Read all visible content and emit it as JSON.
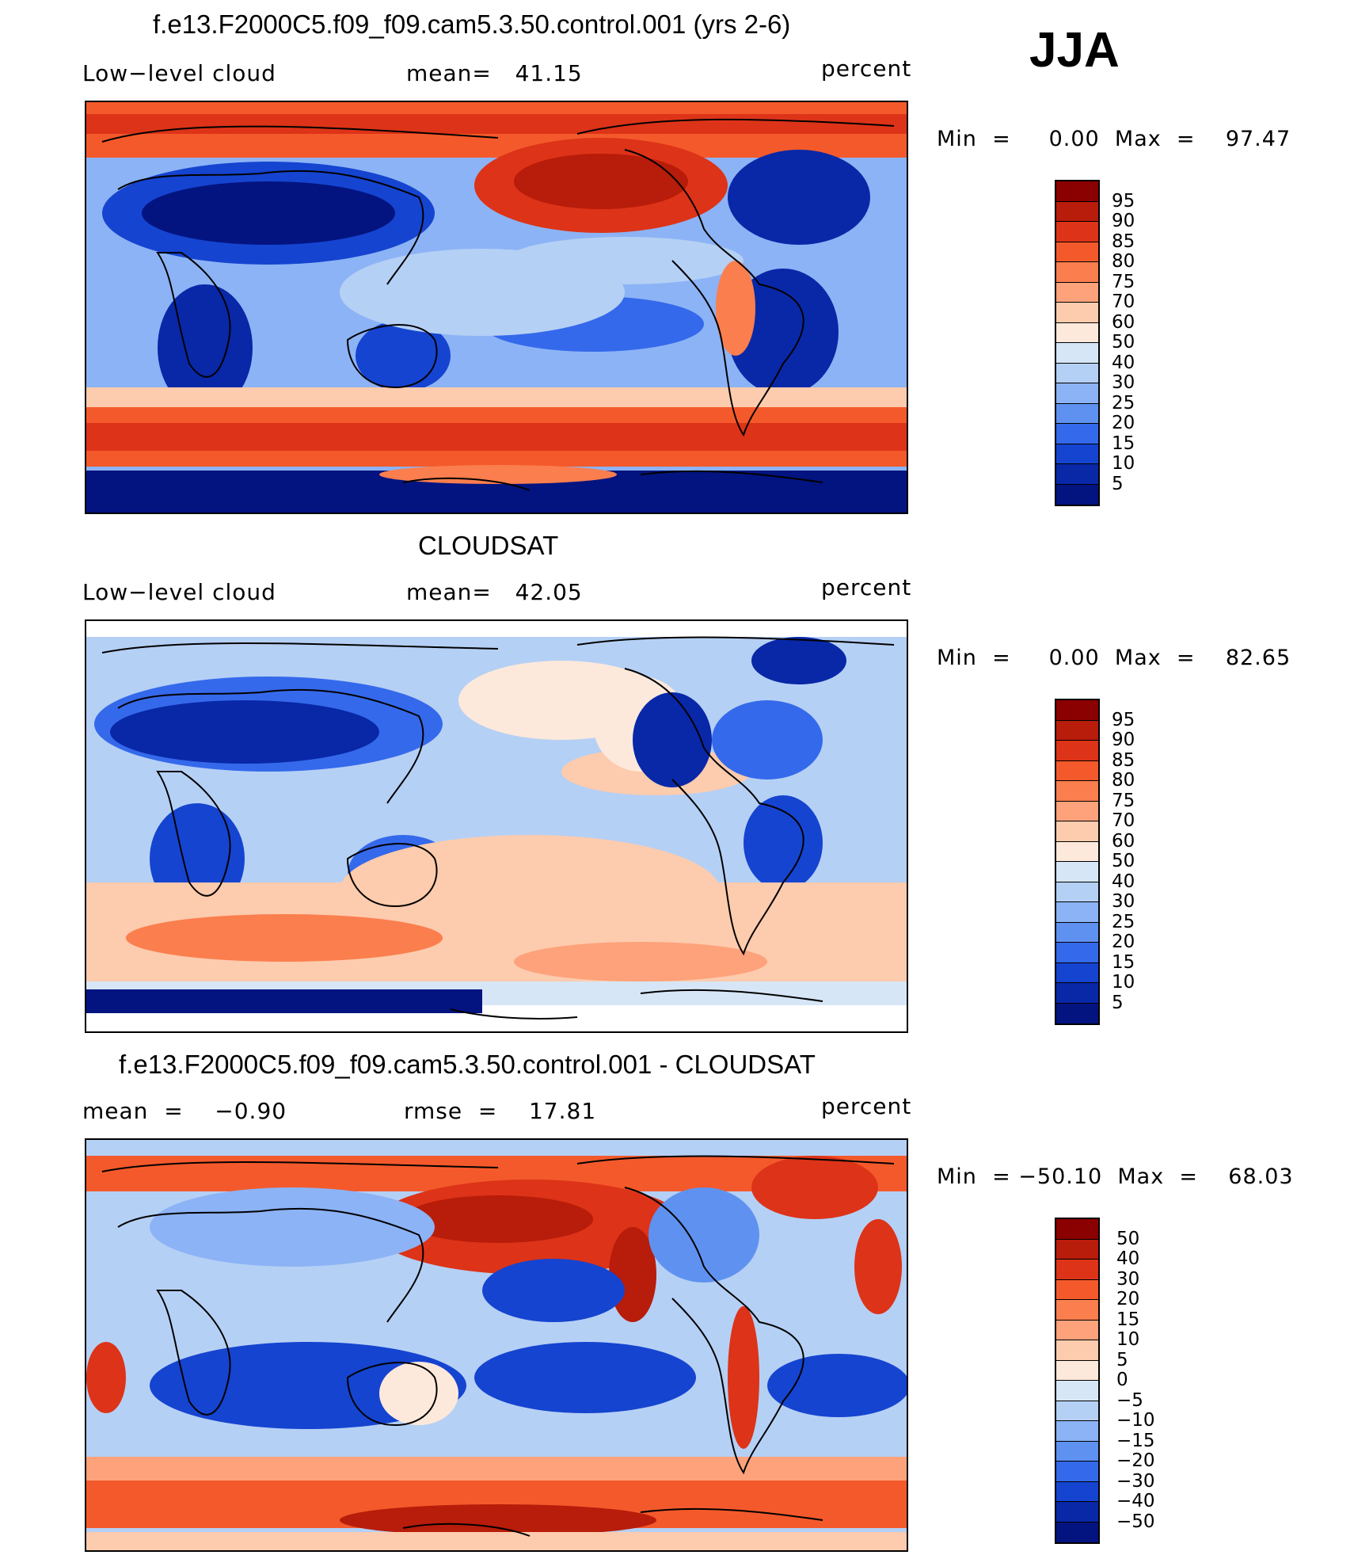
{
  "season": "JJA",
  "panels": [
    {
      "title": "f.e13.F2000C5.f09_f09.cam5.3.50.control.001 (yrs 2-6)",
      "left_label": "Low−level cloud",
      "center_label": "mean=   41.15",
      "right_label": "percent",
      "minmax": "Min  =     0.00  Max  =    97.47",
      "colorbar": {
        "labels": [
          "95",
          "90",
          "85",
          "80",
          "75",
          "70",
          "60",
          "50",
          "40",
          "30",
          "25",
          "20",
          "15",
          "10",
          "5"
        ],
        "colors": [
          "#8b0000",
          "#b81c0a",
          "#dd3318",
          "#f4592b",
          "#fb7e4e",
          "#fda27b",
          "#fdcbad",
          "#fde9db",
          "#d6e6f6",
          "#b5d0f5",
          "#8cb3f5",
          "#5f92f0",
          "#3569eb",
          "#1544d0",
          "#0828a8",
          "#031480"
        ]
      }
    },
    {
      "title": "CLOUDSAT",
      "left_label": "Low−level cloud",
      "center_label": "mean=   42.05",
      "right_label": "percent",
      "minmax": "Min  =     0.00  Max  =    82.65",
      "colorbar": {
        "labels": [
          "95",
          "90",
          "85",
          "80",
          "75",
          "70",
          "60",
          "50",
          "40",
          "30",
          "25",
          "20",
          "15",
          "10",
          "5"
        ],
        "colors": [
          "#8b0000",
          "#b81c0a",
          "#dd3318",
          "#f4592b",
          "#fb7e4e",
          "#fda27b",
          "#fdcbad",
          "#fde9db",
          "#d6e6f6",
          "#b5d0f5",
          "#8cb3f5",
          "#5f92f0",
          "#3569eb",
          "#1544d0",
          "#0828a8",
          "#031480"
        ]
      }
    },
    {
      "title": "f.e13.F2000C5.f09_f09.cam5.3.50.control.001 - CLOUDSAT",
      "left_label": "mean  =    −0.90",
      "center_label": "rmse  =    17.81",
      "right_label": "percent",
      "minmax": "Min  = −50.10  Max  =    68.03",
      "colorbar": {
        "labels": [
          "50",
          "40",
          "30",
          "20",
          "15",
          "10",
          "5",
          "0",
          "−5",
          "−10",
          "−15",
          "−20",
          "−30",
          "−40",
          "−50"
        ],
        "colors": [
          "#8b0000",
          "#b81c0a",
          "#dd3318",
          "#f4592b",
          "#fb7e4e",
          "#fda27b",
          "#fdcbad",
          "#fde9db",
          "#d6e6f6",
          "#b5d0f5",
          "#8cb3f5",
          "#5f92f0",
          "#3569eb",
          "#1544d0",
          "#0828a8",
          "#031480"
        ]
      }
    }
  ]
}
